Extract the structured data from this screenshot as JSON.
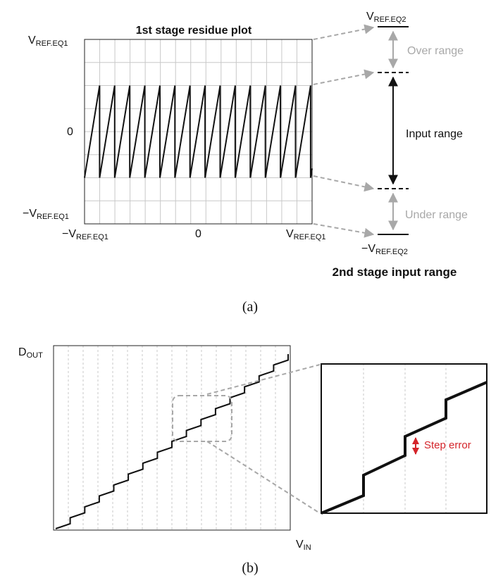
{
  "panel_a": {
    "title": "1st stage residue plot",
    "y_labels": {
      "top": {
        "main": "V",
        "sub": "REF.EQ1"
      },
      "zero": "0",
      "bottom": {
        "main": "−V",
        "sub": "REF.EQ1"
      }
    },
    "x_labels": {
      "left": {
        "main": "−V",
        "sub": "REF.EQ1"
      },
      "zero": "0",
      "right": {
        "main": "V",
        "sub": "REF.EQ1"
      }
    },
    "residue": {
      "teeth": 15,
      "y_high": 0.5,
      "y_low": -0.5,
      "y_range": [
        -1,
        1
      ]
    },
    "right_labels": {
      "top": {
        "main": "V",
        "sub": "REF.EQ2"
      },
      "over_range": "Over range",
      "input_range": "Input range",
      "under_range": "Under range",
      "bottom": {
        "main": "−V",
        "sub": "REF.EQ2"
      },
      "title": "2nd stage input range"
    },
    "caption": "(a)"
  },
  "panel_b": {
    "y_label": {
      "main": "D",
      "sub": "OUT"
    },
    "x_label": {
      "main": "V",
      "sub": "IN"
    },
    "steps": 16,
    "zoom": {
      "label": "Step error"
    },
    "caption": "(b)",
    "colors": {
      "grid": "#c8c8c8",
      "dashed": "#a8a8a8",
      "accent": "#d4242a"
    }
  }
}
